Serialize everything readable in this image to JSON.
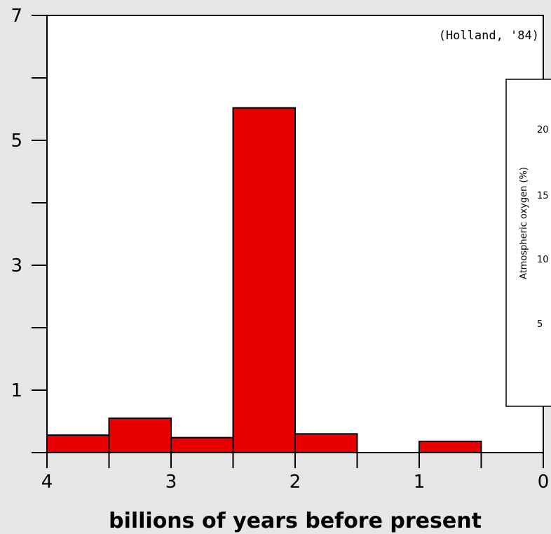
{
  "chart_data": {
    "type": "bar",
    "title": "",
    "xlabel": "billions of years before present",
    "ylabel": "",
    "x_ticks": [
      "4",
      "3",
      "2",
      "1",
      "0"
    ],
    "x_tick_values": [
      4,
      3,
      2,
      1,
      0
    ],
    "x_range": [
      4,
      0
    ],
    "y_ticks": [
      "7",
      "5",
      "3",
      "1"
    ],
    "y_tick_values": [
      7,
      5,
      3,
      1
    ],
    "y_minor_ticks": [
      6,
      4,
      2
    ],
    "ylim": [
      0,
      7
    ],
    "annotation": "(Holland, '84)",
    "bin_edges": [
      4.0,
      3.5,
      3.0,
      2.5,
      2.0,
      1.5,
      1.0,
      0.5,
      0.0
    ],
    "values": [
      0.28,
      0.55,
      0.24,
      5.52,
      0.3,
      0.0,
      0.18,
      0.0
    ],
    "colors": {
      "bar": "#e80000",
      "background": "#ffffff",
      "page": "#e6e6e6"
    },
    "grid": false
  },
  "inset": {
    "ylabel": "Atmospheric oxygen (%)",
    "tick_labels": [
      "20",
      "15",
      "10",
      "5"
    ]
  }
}
